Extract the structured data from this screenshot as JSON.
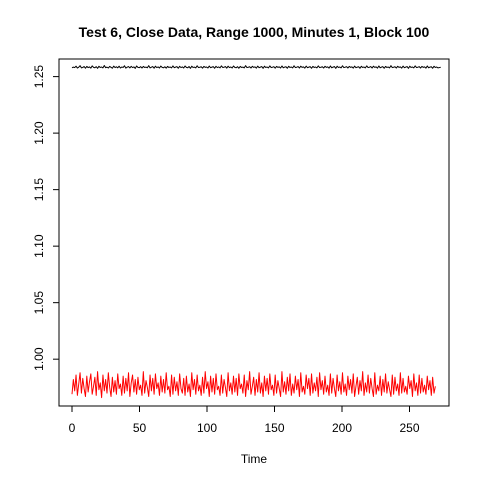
{
  "chart_data": {
    "type": "line",
    "title": "Test 6, Close Data, Range 1000, Minutes 1, Block 100",
    "xlabel": "Time",
    "ylabel": "",
    "xlim": [
      0,
      280
    ],
    "ylim": [
      0.963,
      1.27
    ],
    "x_ticks": [
      0,
      50,
      100,
      150,
      200,
      250
    ],
    "x_tick_labels": [
      "0",
      "50",
      "100",
      "150",
      "200",
      "250"
    ],
    "y_ticks": [
      1.0,
      1.05,
      1.1,
      1.15,
      1.2,
      1.25
    ],
    "y_tick_labels": [
      "1.00",
      "1.05",
      "1.10",
      "1.15",
      "1.20",
      "1.25"
    ],
    "grid": false,
    "legend": "none",
    "n_points": 270,
    "series": [
      {
        "color": "#000000",
        "values": [
          1.2578,
          1.2584,
          1.258,
          1.2592,
          1.2576,
          1.2583,
          1.2597,
          1.2577,
          1.2581,
          1.2589,
          1.2574,
          1.259,
          1.258,
          1.2586,
          1.2575,
          1.2595,
          1.2582,
          1.2578,
          1.2588,
          1.2573,
          1.2591,
          1.2581,
          1.2585,
          1.2577,
          1.2598,
          1.2579,
          1.2584,
          1.2576,
          1.259,
          1.2582,
          1.2574,
          1.2593,
          1.258,
          1.2587,
          1.2578,
          1.2592,
          1.2576,
          1.2585,
          1.2581,
          1.2596,
          1.2575,
          1.2583,
          1.2589,
          1.2577,
          1.2591,
          1.258,
          1.2586,
          1.2573,
          1.2594,
          1.2582,
          1.2579,
          1.2588,
          1.2576,
          1.259,
          1.2581,
          1.2584,
          1.2578,
          1.2597,
          1.2577,
          1.2583,
          1.2589,
          1.2574,
          1.2592,
          1.258,
          1.2586,
          1.2576,
          1.2593,
          1.2582,
          1.2578,
          1.2587,
          1.2575,
          1.259,
          1.2581,
          1.2585,
          1.2577,
          1.2595,
          1.2579,
          1.2584,
          1.2588,
          1.2574,
          1.2591,
          1.258,
          1.2586,
          1.2576,
          1.2594,
          1.2582,
          1.2578,
          1.2589,
          1.2573,
          1.2592,
          1.2581,
          1.2584,
          1.2577,
          1.2596,
          1.258,
          1.2583,
          1.2587,
          1.2575,
          1.259,
          1.2582,
          1.2585,
          1.2576,
          1.2593,
          1.2579,
          1.2584,
          1.2588,
          1.2574,
          1.2591,
          1.258,
          1.2586,
          1.2577,
          1.2595,
          1.2581,
          1.2583,
          1.2589,
          1.2575,
          1.2592,
          1.258,
          1.2585,
          1.2576,
          1.2594,
          1.2582,
          1.2578,
          1.2588,
          1.2574,
          1.259,
          1.2581,
          1.2584,
          1.2577,
          1.2597,
          1.258,
          1.2583,
          1.2587,
          1.2576,
          1.2591,
          1.2582,
          1.2586,
          1.2575,
          1.2593,
          1.2579,
          1.2584,
          1.2589,
          1.2573,
          1.2592,
          1.2581,
          1.2585,
          1.2577,
          1.2595,
          1.258,
          1.2583,
          1.2588,
          1.2575,
          1.259,
          1.2582,
          1.2586,
          1.2576,
          1.2594,
          1.2578,
          1.2584,
          1.2587,
          1.2574,
          1.2591,
          1.2581,
          1.2585,
          1.2577,
          1.2596,
          1.258,
          1.2583,
          1.2589,
          1.2576,
          1.2592,
          1.2582,
          1.2586,
          1.2575,
          1.2593,
          1.2579,
          1.2584,
          1.2588,
          1.2574,
          1.259,
          1.2581,
          1.2585,
          1.2577,
          1.2595,
          1.258,
          1.2583,
          1.2587,
          1.2576,
          1.2591,
          1.2582,
          1.2586,
          1.2575,
          1.2594,
          1.2578,
          1.2584,
          1.2589,
          1.2573,
          1.2592,
          1.2581,
          1.2585,
          1.2577,
          1.2596,
          1.258,
          1.2583,
          1.2588,
          1.2576,
          1.259,
          1.2582,
          1.2586,
          1.2575,
          1.2593,
          1.2579,
          1.2584,
          1.2587,
          1.2574,
          1.2591,
          1.2581,
          1.2585,
          1.2577,
          1.2595,
          1.258,
          1.2583,
          1.2589,
          1.2576,
          1.2592,
          1.2582,
          1.2586,
          1.2575,
          1.2594,
          1.2578,
          1.2584,
          1.2588,
          1.2574,
          1.259,
          1.2581,
          1.2585,
          1.2577,
          1.2597,
          1.258,
          1.2583,
          1.2587,
          1.2576,
          1.2591,
          1.2582,
          1.2586,
          1.2575,
          1.2593,
          1.2579,
          1.2584,
          1.2589,
          1.2573,
          1.2592,
          1.2581,
          1.2585,
          1.2577,
          1.2595,
          1.258,
          1.2583,
          1.2588,
          1.2576,
          1.259,
          1.2582,
          1.2586,
          1.2575,
          1.2594,
          1.2578,
          1.2584,
          1.2587,
          1.2574,
          1.2591,
          1.2581,
          1.2585,
          1.2577,
          1.258,
          1.2583
        ]
      },
      {
        "color": "#ff0000",
        "values": [
          0.969,
          0.982,
          0.972,
          0.986,
          0.968,
          0.978,
          0.988,
          0.97,
          0.983,
          0.974,
          0.967,
          0.985,
          0.971,
          0.98,
          0.987,
          0.969,
          0.976,
          0.984,
          0.968,
          0.989,
          0.973,
          0.979,
          0.966,
          0.986,
          0.972,
          0.982,
          0.97,
          0.988,
          0.975,
          0.967,
          0.984,
          0.971,
          0.981,
          0.969,
          0.987,
          0.974,
          0.978,
          0.968,
          0.985,
          0.97,
          0.983,
          0.972,
          0.988,
          0.967,
          0.979,
          0.986,
          0.971,
          0.982,
          0.969,
          0.984,
          0.973,
          0.977,
          0.968,
          0.989,
          0.97,
          0.981,
          0.975,
          0.967,
          0.986,
          0.972,
          0.983,
          0.969,
          0.987,
          0.974,
          0.979,
          0.968,
          0.985,
          0.971,
          0.982,
          0.97,
          0.988,
          0.973,
          0.976,
          0.967,
          0.986,
          0.969,
          0.984,
          0.972,
          0.98,
          0.968,
          0.987,
          0.974,
          0.97,
          0.983,
          0.968,
          0.985,
          0.971,
          0.978,
          0.967,
          0.988,
          0.973,
          0.982,
          0.969,
          0.986,
          0.972,
          0.977,
          0.968,
          0.984,
          0.97,
          0.989,
          0.974,
          0.98,
          0.967,
          0.985,
          0.971,
          0.983,
          0.969,
          0.987,
          0.973,
          0.976,
          0.968,
          0.986,
          0.97,
          0.982,
          0.975,
          0.967,
          0.988,
          0.972,
          0.979,
          0.969,
          0.985,
          0.971,
          0.983,
          0.968,
          0.987,
          0.974,
          0.978,
          0.97,
          0.986,
          0.967,
          0.981,
          0.973,
          0.989,
          0.969,
          0.976,
          0.984,
          0.968,
          0.982,
          0.971,
          0.988,
          0.97,
          0.979,
          0.967,
          0.985,
          0.972,
          0.983,
          0.969,
          0.987,
          0.973,
          0.977,
          0.968,
          0.986,
          0.97,
          0.981,
          0.974,
          0.967,
          0.989,
          0.971,
          0.98,
          0.969,
          0.984,
          0.972,
          0.987,
          0.968,
          0.978,
          0.97,
          0.985,
          0.973,
          0.982,
          0.967,
          0.988,
          0.971,
          0.976,
          0.969,
          0.986,
          0.974,
          0.983,
          0.968,
          0.987,
          0.97,
          0.979,
          0.972,
          0.984,
          0.967,
          0.988,
          0.973,
          0.981,
          0.969,
          0.985,
          0.971,
          0.977,
          0.968,
          0.987,
          0.97,
          0.983,
          0.974,
          0.967,
          0.986,
          0.972,
          0.98,
          0.969,
          0.988,
          0.971,
          0.978,
          0.968,
          0.985,
          0.973,
          0.982,
          0.97,
          0.987,
          0.967,
          0.976,
          0.984,
          0.969,
          0.981,
          0.972,
          0.989,
          0.968,
          0.979,
          0.971,
          0.986,
          0.97,
          0.983,
          0.974,
          0.967,
          0.988,
          0.969,
          0.977,
          0.972,
          0.985,
          0.968,
          0.982,
          0.971,
          0.987,
          0.97,
          0.98,
          0.973,
          0.967,
          0.986,
          0.969,
          0.984,
          0.972,
          0.978,
          0.968,
          0.988,
          0.97,
          0.983,
          0.971,
          0.976,
          0.969,
          0.985,
          0.974,
          0.981,
          0.967,
          0.987,
          0.972,
          0.979,
          0.968,
          0.986,
          0.97,
          0.983,
          0.971,
          0.977,
          0.969,
          0.985,
          0.973,
          0.981,
          0.968,
          0.984,
          0.97,
          0.976
        ]
      }
    ]
  }
}
